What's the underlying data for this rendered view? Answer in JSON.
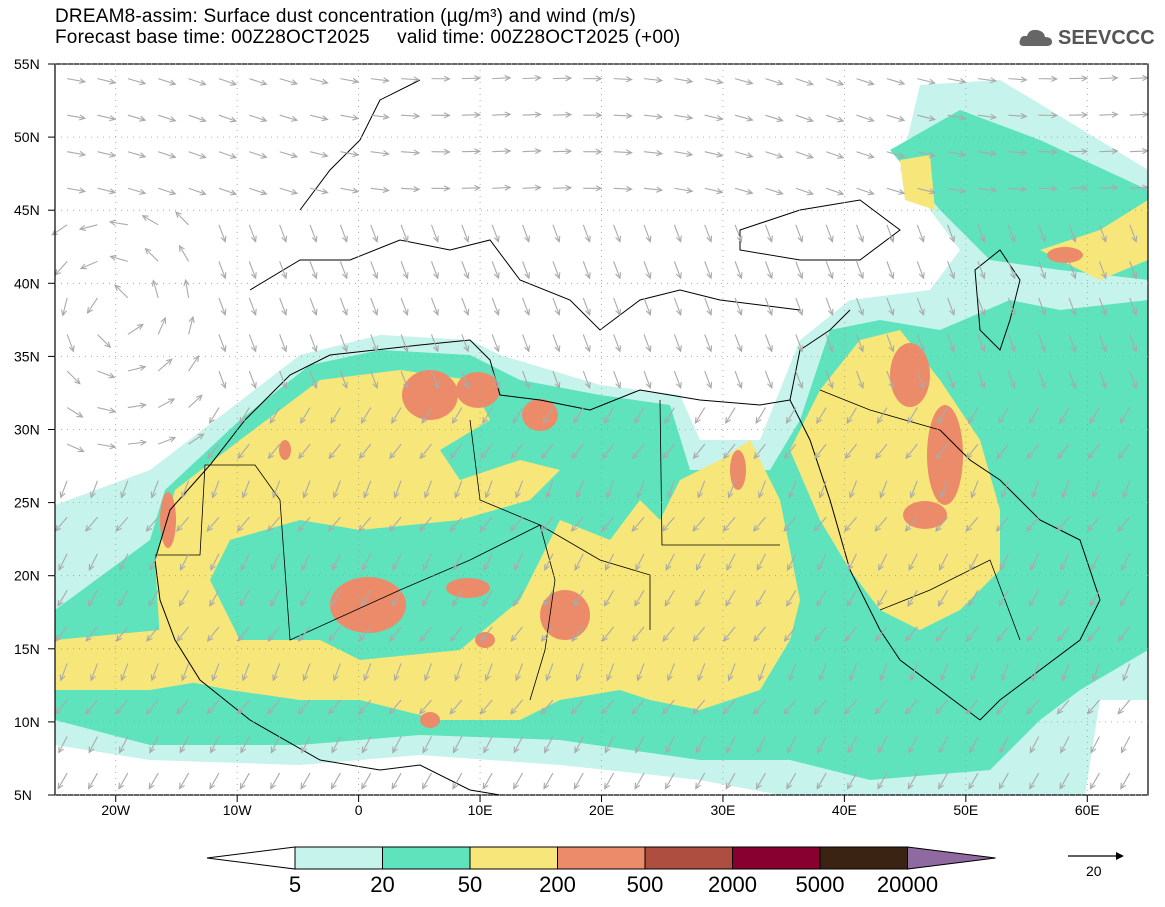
{
  "header": {
    "title_line1": "DREAM8-assim: Surface dust concentration (µg/m³) and wind (m/s)",
    "title_line2": "Forecast base time: 00Z28OCT2025     valid time: 00Z28OCT2025 (+00)",
    "logo_text": "SEEVCCC"
  },
  "map": {
    "lat_labels": [
      "55N",
      "50N",
      "45N",
      "40N",
      "35N",
      "30N",
      "25N",
      "20N",
      "15N",
      "10N",
      "5N"
    ],
    "lon_labels": [
      "20W",
      "10W",
      "0",
      "10E",
      "20E",
      "30E",
      "40E",
      "50E",
      "60E"
    ],
    "extent": {
      "lon": [
        -25,
        65
      ],
      "lat": [
        5,
        55
      ]
    }
  },
  "colorbar": {
    "levels": [
      "5",
      "20",
      "50",
      "200",
      "500",
      "2000",
      "5000",
      "20000"
    ],
    "colors": [
      "#c6f3ec",
      "#5ee3bd",
      "#f7e77b",
      "#ec8b6a",
      "#ad4e41",
      "#870030",
      "#3a2313",
      "#8f6aa0"
    ]
  },
  "wind_key": {
    "label": "20"
  }
}
